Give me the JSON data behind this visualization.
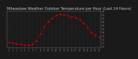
{
  "title": "Milwaukee Weather Outdoor Temperature per Hour (Last 24 Hours)",
  "hours": [
    0,
    1,
    2,
    3,
    4,
    5,
    6,
    7,
    8,
    9,
    10,
    11,
    12,
    13,
    14,
    15,
    16,
    17,
    18,
    19,
    20,
    21,
    22,
    23
  ],
  "temps": [
    36,
    35,
    34,
    33,
    32,
    32,
    33,
    38,
    48,
    58,
    65,
    70,
    74,
    76,
    75,
    74,
    72,
    71,
    68,
    63,
    57,
    50,
    46,
    43
  ],
  "line_color": "#cc0000",
  "bg_color": "#1a1a1a",
  "plot_bg": "#1a1a1a",
  "title_color": "#cccccc",
  "axis_color": "#888888",
  "grid_color": "#444444",
  "ylim": [
    28,
    80
  ],
  "yticks": [
    30,
    35,
    40,
    45,
    50,
    55,
    60,
    65,
    70,
    75,
    80
  ],
  "title_fontsize": 3.8,
  "tick_fontsize": 2.2
}
